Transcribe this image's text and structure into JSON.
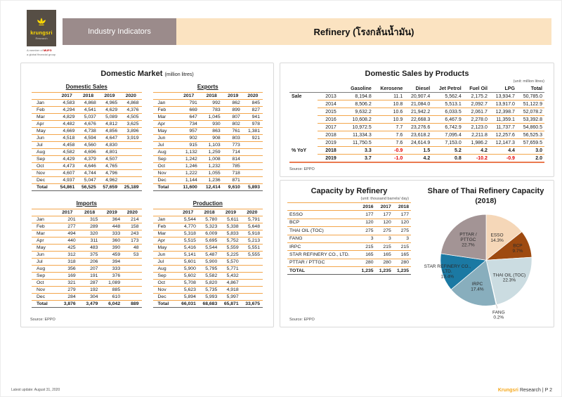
{
  "header": {
    "logo": {
      "brand": "krungsri",
      "sub": "Research",
      "tagline_pre": "A member of",
      "tagline_mufg": "MUFG",
      "tagline2": "a global financial group"
    },
    "section_label": "Industry Indicators",
    "page_title": "Refinery (โรงกลั่นน้ำมัน)"
  },
  "domestic_market": {
    "title": "Domestic Market",
    "unit": "(million litres)",
    "source": "Source: EPPO",
    "years": [
      "2017",
      "2018",
      "2019",
      "2020"
    ],
    "months": [
      "Jan",
      "Feb",
      "Mar",
      "Apr",
      "May",
      "Jun",
      "Jul",
      "Aug",
      "Sep",
      "Oct",
      "Nov",
      "Dec"
    ],
    "total_label": "Total",
    "tables": [
      {
        "title": "Domestic Sales",
        "rows": [
          [
            "4,583",
            "4,868",
            "4,965",
            "4,868"
          ],
          [
            "4,294",
            "4,541",
            "4,629",
            "4,376"
          ],
          [
            "4,829",
            "5,037",
            "5,089",
            "4,505"
          ],
          [
            "4,482",
            "4,676",
            "4,812",
            "3,625"
          ],
          [
            "4,669",
            "4,738",
            "4,856",
            "3,896"
          ],
          [
            "4,518",
            "4,594",
            "4,647",
            "3,919"
          ],
          [
            "4,458",
            "4,560",
            "4,830",
            ""
          ],
          [
            "4,582",
            "4,696",
            "4,801",
            ""
          ],
          [
            "4,429",
            "4,379",
            "4,507",
            ""
          ],
          [
            "4,473",
            "4,646",
            "4,765",
            ""
          ],
          [
            "4,607",
            "4,744",
            "4,796",
            ""
          ],
          [
            "4,937",
            "5,047",
            "4,962",
            ""
          ]
        ],
        "total": [
          "54,861",
          "56,525",
          "57,659",
          "25,189"
        ]
      },
      {
        "title": "Exports",
        "rows": [
          [
            "791",
            "992",
            "862",
            "845"
          ],
          [
            "669",
            "783",
            "899",
            "827"
          ],
          [
            "647",
            "1,045",
            "807",
            "941"
          ],
          [
            "734",
            "930",
            "802",
            "978"
          ],
          [
            "957",
            "863",
            "761",
            "1,381"
          ],
          [
            "902",
            "908",
            "803",
            "921"
          ],
          [
            "915",
            "1,103",
            "773",
            ""
          ],
          [
            "1,132",
            "1,259",
            "714",
            ""
          ],
          [
            "1,242",
            "1,008",
            "814",
            ""
          ],
          [
            "1,246",
            "1,232",
            "785",
            ""
          ],
          [
            "1,222",
            "1,055",
            "718",
            ""
          ],
          [
            "1,144",
            "1,236",
            "871",
            ""
          ]
        ],
        "total": [
          "11,600",
          "12,414",
          "9,610",
          "5,893"
        ]
      },
      {
        "title": "Imports",
        "rows": [
          [
            "201",
            "315",
            "364",
            "214"
          ],
          [
            "277",
            "289",
            "448",
            "158"
          ],
          [
            "494",
            "320",
            "333",
            "243"
          ],
          [
            "440",
            "311",
            "360",
            "173"
          ],
          [
            "425",
            "483",
            "390",
            "48"
          ],
          [
            "312",
            "375",
            "459",
            "53"
          ],
          [
            "318",
            "206",
            "394",
            ""
          ],
          [
            "356",
            "207",
            "333",
            ""
          ],
          [
            "169",
            "191",
            "376",
            ""
          ],
          [
            "321",
            "287",
            "1,089",
            ""
          ],
          [
            "279",
            "192",
            "885",
            ""
          ],
          [
            "284",
            "304",
            "610",
            ""
          ]
        ],
        "total": [
          "3,876",
          "3,479",
          "6,042",
          "889"
        ]
      },
      {
        "title": "Production",
        "rows": [
          [
            "5,544",
            "5,780",
            "5,611",
            "5,791"
          ],
          [
            "4,770",
            "5,323",
            "5,338",
            "5,648"
          ],
          [
            "5,318",
            "6,009",
            "5,833",
            "5,918"
          ],
          [
            "5,515",
            "5,695",
            "5,752",
            "5,213"
          ],
          [
            "5,416",
            "5,544",
            "5,559",
            "5,551"
          ],
          [
            "5,141",
            "5,487",
            "5,225",
            "5,555"
          ],
          [
            "5,601",
            "5,900",
            "5,570",
            ""
          ],
          [
            "5,900",
            "5,795",
            "5,771",
            ""
          ],
          [
            "5,602",
            "5,582",
            "5,432",
            ""
          ],
          [
            "5,708",
            "5,820",
            "4,867",
            ""
          ],
          [
            "5,623",
            "5,735",
            "4,918",
            ""
          ],
          [
            "5,894",
            "5,993",
            "5,997",
            ""
          ]
        ],
        "total": [
          "66,031",
          "68,683",
          "65,871",
          "33,675"
        ]
      }
    ]
  },
  "products": {
    "title": "Domestic Sales by Products",
    "unit": "(unit: million litres)",
    "source": "Source: EPPO",
    "sale_label": "Sale",
    "yoy_label": "% YoY",
    "columns": [
      "Gasoline",
      "Kerosene",
      "Diesel",
      "Jet Petrol",
      "Fuel Oil",
      "LPG",
      "Total"
    ],
    "sale_rows": [
      {
        "year": "2013",
        "values": [
          "8,194.8",
          "11.1",
          "20,907.4",
          "5,562.4",
          "2,175.2",
          "13,934.7",
          "50,785.0"
        ]
      },
      {
        "year": "2014",
        "values": [
          "8,506.2",
          "10.8",
          "21,084.0",
          "5,513.1",
          "2,092.7",
          "13,917.0",
          "51,122.9"
        ]
      },
      {
        "year": "2015",
        "values": [
          "9,632.2",
          "10.6",
          "21,942.2",
          "6,033.5",
          "2,061.7",
          "12,398.7",
          "52,078.2"
        ]
      },
      {
        "year": "2016",
        "values": [
          "10,608.2",
          "10.9",
          "22,668.3",
          "6,467.9",
          "2,278.0",
          "11,359.1",
          "53,392.8"
        ]
      },
      {
        "year": "2017",
        "values": [
          "10,972.5",
          "7.7",
          "23,276.6",
          "6,742.9",
          "2,123.0",
          "11,737.7",
          "54,860.5"
        ]
      },
      {
        "year": "2018",
        "values": [
          "11,334.3",
          "7.6",
          "23,618.2",
          "7,095.4",
          "2,211.8",
          "12,257.6",
          "56,525.3"
        ]
      },
      {
        "year": "2019",
        "values": [
          "11,750.5",
          "7.6",
          "24,614.9",
          "7,153.0",
          "1,986.2",
          "12,147.3",
          "57,659.5"
        ]
      }
    ],
    "yoy_rows": [
      {
        "year": "2018",
        "values": [
          "3.3",
          "-0.9",
          "1.5",
          "5.2",
          "4.2",
          "4.4",
          "3.0"
        ]
      },
      {
        "year": "2019",
        "values": [
          "3.7",
          "-1.0",
          "4.2",
          "0.8",
          "-10.2",
          "-0.9",
          "2.0"
        ]
      }
    ]
  },
  "capacity": {
    "title": "Capacity by Refinery",
    "unit": "(unit: thousand barrels/ day)",
    "source": "Source: EPPO",
    "years": [
      "2016",
      "2017",
      "2018"
    ],
    "rows": [
      {
        "name": "ESSO",
        "values": [
          "177",
          "177",
          "177"
        ]
      },
      {
        "name": "BCP",
        "values": [
          "120",
          "120",
          "120"
        ]
      },
      {
        "name": "THAI OIL (TOC)",
        "values": [
          "275",
          "275",
          "275"
        ]
      },
      {
        "name": "FANG",
        "values": [
          "3",
          "3",
          "3"
        ]
      },
      {
        "name": "IRPC",
        "values": [
          "215",
          "215",
          "215"
        ]
      },
      {
        "name": "STAR REFINERY CO., LTD.",
        "values": [
          "165",
          "165",
          "165"
        ]
      },
      {
        "name": "PTTAR / PTTGC",
        "values": [
          "280",
          "280",
          "280"
        ]
      }
    ],
    "total": {
      "name": "TOTAL",
      "values": [
        "1,235",
        "1,235",
        "1,235"
      ]
    }
  },
  "chart_data": {
    "type": "pie",
    "title": "Share of Thai Refinery Capacity",
    "subtitle": "(2018)",
    "legend_position": "labels-on-slices",
    "slices": [
      {
        "label": "ESSO",
        "value": 14.3,
        "color": "#f5d7b8",
        "lines": [
          "ESSO",
          "14.3%"
        ],
        "lr": 0.55
      },
      {
        "label": "BCP",
        "value": 9.7,
        "color": "#9e4a10",
        "lines": [
          "BCP",
          "9.7%"
        ],
        "lr": 0.74
      },
      {
        "label": "THAI OIL (TOC)",
        "value": 22.3,
        "color": "#cbdce1",
        "lines": [
          "THAI OIL (TOC)",
          "22.3%"
        ],
        "lr": 0.63
      },
      {
        "label": "FANG",
        "value": 0.2,
        "color": "#ededed",
        "lines": [
          "FANG",
          "0.2%"
        ],
        "lr": 1.22,
        "outside": true
      },
      {
        "label": "IRPC",
        "value": 17.4,
        "color": "#88aebd",
        "lines": [
          "IRPC",
          "17.4%"
        ],
        "lr": 0.6
      },
      {
        "label": "STAR REFINERY CO., LTD.",
        "value": 13.4,
        "color": "#1b79a3",
        "lines": [
          "STAR REFINERY CO.,",
          "LTD.",
          "13.4%"
        ],
        "lr": 0.88
      },
      {
        "label": "PTTAR / PTTGC",
        "value": 22.7,
        "color": "#a39495",
        "lines": [
          "PTTAR /",
          "PTTGC",
          "22.7%"
        ],
        "lr": 0.6
      }
    ]
  },
  "footer": {
    "left": "Latest update: August 31, 2020",
    "brand": "Krungsri",
    "brand_rest": " Research",
    "page": " |  P 2"
  }
}
